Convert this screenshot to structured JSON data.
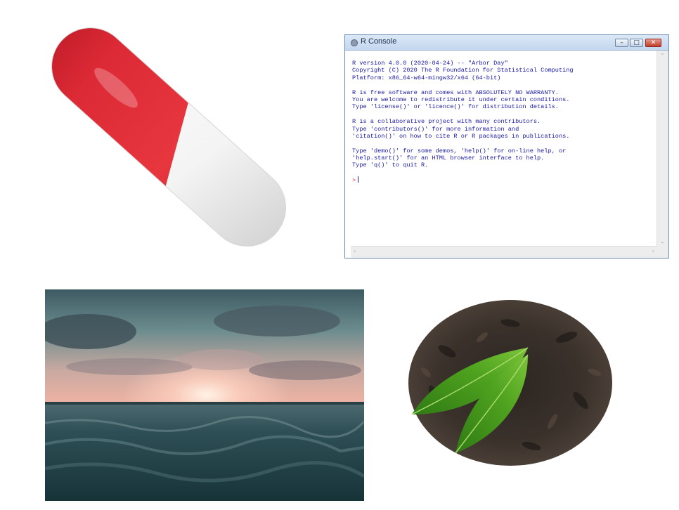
{
  "images": {
    "capsule": "capsule-pill-photo",
    "sea": "sunset-over-sea-photo",
    "tea": "tea-leaves-photo"
  },
  "r_console": {
    "title": "R Console",
    "lines": [
      "R version 4.0.0 (2020-04-24) -- \"Arbor Day\"",
      "Copyright (C) 2020 The R Foundation for Statistical Computing",
      "Platform: x86_64-w64-mingw32/x64 (64-bit)",
      "",
      "R is free software and comes with ABSOLUTELY NO WARRANTY.",
      "You are welcome to redistribute it under certain conditions.",
      "Type 'license()' or 'licence()' for distribution details.",
      "",
      "R is a collaborative project with many contributors.",
      "Type 'contributors()' for more information and",
      "'citation()' on how to cite R or R packages in publications.",
      "",
      "Type 'demo()' for some demos, 'help()' for on-line help, or",
      "'help.start()' for an HTML browser interface to help.",
      "Type 'q()' to quit R."
    ],
    "prompt": ">",
    "buttons": {
      "minimize": "–",
      "maximize": "□",
      "close": "✕"
    },
    "colors": {
      "text": "#1a1aa8",
      "prompt": "#e53333"
    }
  }
}
